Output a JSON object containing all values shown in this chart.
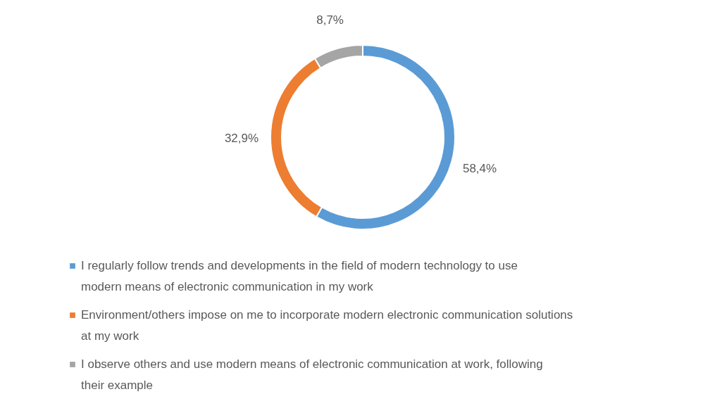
{
  "chart_data": {
    "type": "donut",
    "categories": [
      "I regularly follow trends and developments in the field of modern technology to use modern means of electronic communication in my work",
      "Environment/others impose on me to incorporate modern electronic communication solutions at my work",
      "I observe others and use modern means of electronic communication at work, following their example"
    ],
    "values": [
      58.4,
      32.9,
      8.7
    ],
    "colors": [
      "#5b9bd5",
      "#ed7d31",
      "#a5a5a5"
    ],
    "value_labels": [
      "58,4%",
      "32,9%",
      "8,7%"
    ],
    "legend": "bottom"
  }
}
